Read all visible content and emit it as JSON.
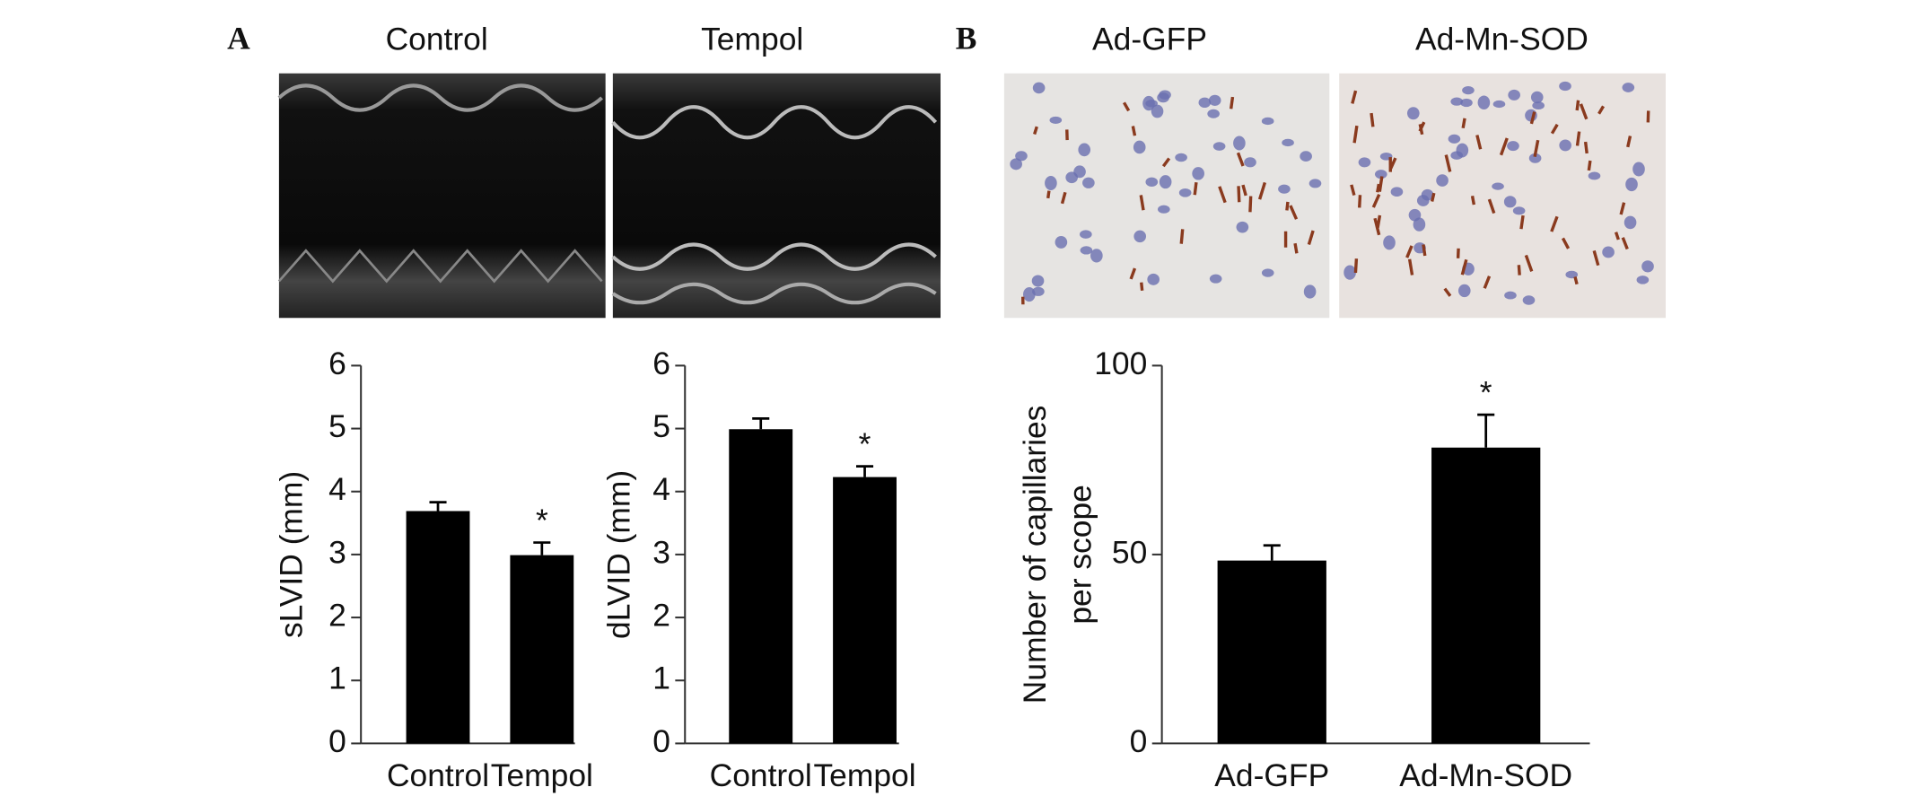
{
  "panels": [
    {
      "label": "A",
      "image_titles": [
        "Control",
        "Tempol"
      ]
    },
    {
      "label": "B",
      "image_titles": [
        "Ad-GFP",
        "Ad-Mn-SOD"
      ]
    }
  ],
  "chart_data": [
    {
      "type": "bar",
      "ylabel": [
        "sLVID (mm)"
      ],
      "categories": [
        "Control",
        "Tempol"
      ],
      "values": [
        3.69,
        2.99
      ],
      "errors": [
        0.14,
        0.2
      ],
      "value_annotations": [
        null,
        "*"
      ],
      "color": "#000000",
      "ylim": [
        0,
        6
      ],
      "yticks": [
        0,
        1,
        2,
        3,
        4,
        5,
        6
      ]
    },
    {
      "type": "bar",
      "ylabel": [
        "dLVID (mm)"
      ],
      "categories": [
        "Control",
        "Tempol"
      ],
      "values": [
        4.99,
        4.23
      ],
      "errors": [
        0.17,
        0.17
      ],
      "value_annotations": [
        null,
        "*"
      ],
      "color": "#000000",
      "ylim": [
        0,
        6
      ],
      "yticks": [
        0,
        1,
        2,
        3,
        4,
        5,
        6
      ]
    },
    {
      "type": "bar",
      "ylabel": [
        "Number of  capillaries",
        "per scope"
      ],
      "categories": [
        "Ad-GFP",
        "Ad-Mn-SOD"
      ],
      "values": [
        48.4,
        78.3
      ],
      "errors": [
        4,
        8.7
      ],
      "value_annotations": [
        null,
        "*"
      ],
      "color": "#000000",
      "ylim": [
        0,
        100
      ],
      "yticks": [
        0,
        50,
        100
      ]
    }
  ]
}
